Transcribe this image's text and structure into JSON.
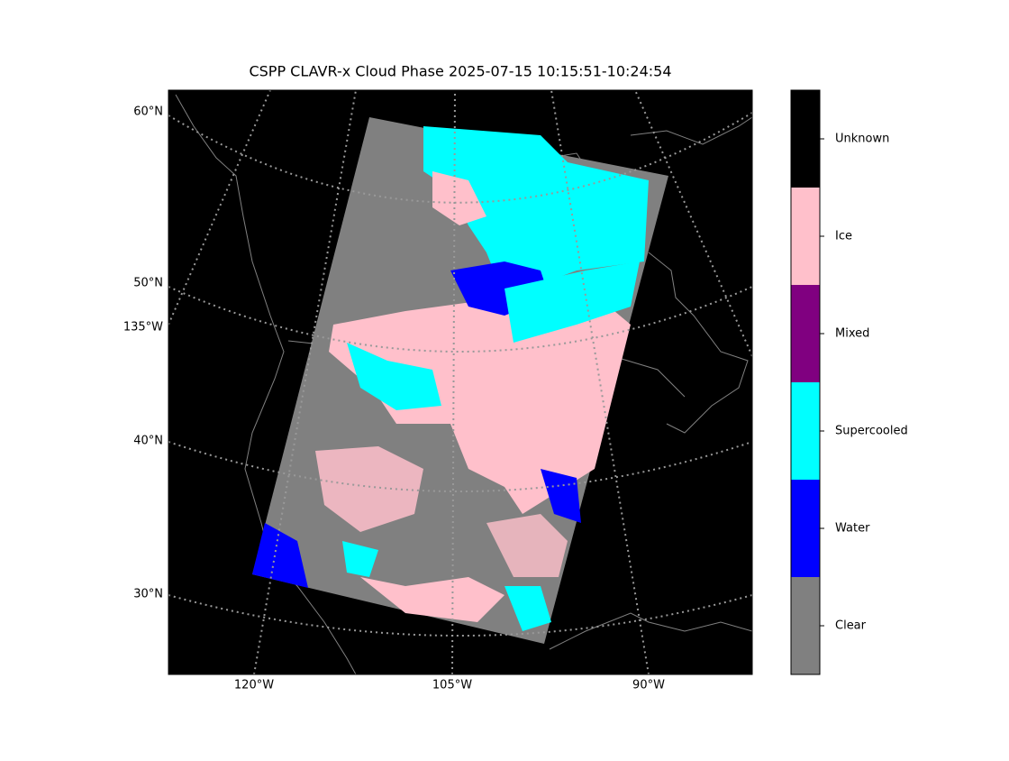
{
  "title": "CSPP CLAVR-x Cloud Phase 2025-07-15 10:15:51-10:24:54",
  "map": {
    "lat_labels": [
      "60°N",
      "50°N",
      "135°W",
      "40°N",
      "30°N"
    ],
    "lon_labels": [
      "120°W",
      "105°W",
      "90°W"
    ]
  },
  "colorbar": {
    "classes": [
      {
        "label": "Unknown",
        "color": "#000000"
      },
      {
        "label": "Ice",
        "color": "#ffc0cb"
      },
      {
        "label": "Mixed",
        "color": "#800080"
      },
      {
        "label": "Supercooled",
        "color": "#00ffff"
      },
      {
        "label": "Water",
        "color": "#0000ff"
      },
      {
        "label": "Clear",
        "color": "#808080"
      }
    ]
  }
}
